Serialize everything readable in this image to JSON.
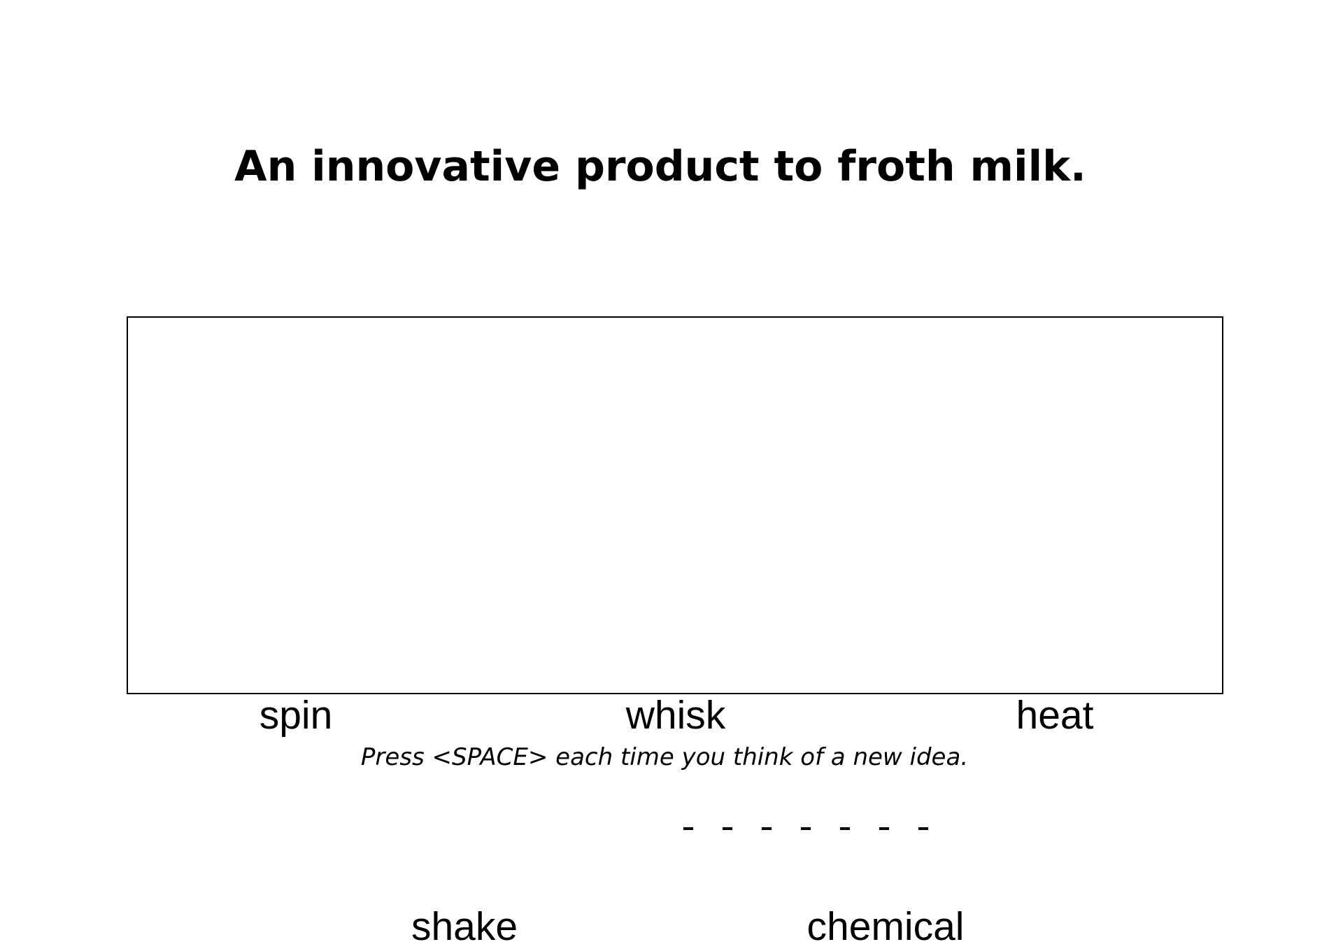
{
  "prompt": {
    "title": "An innovative product to froth milk."
  },
  "words": {
    "top": [
      "spin",
      "whisk",
      "heat"
    ],
    "bottom": [
      "shake",
      "chemical"
    ]
  },
  "response_dashes": "- - - - - - -",
  "instruction": "Press <SPACE> each time you think of a new idea."
}
